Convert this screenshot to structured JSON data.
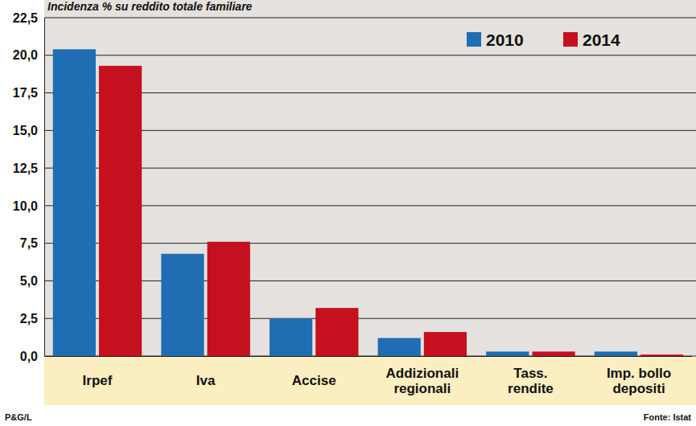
{
  "chart_data": {
    "type": "bar",
    "subtitle": "Incidenza % su reddito totale familiare",
    "categories": [
      "Irpef",
      "Iva",
      "Accise",
      "Addizionali regionali",
      "Tass. rendite",
      "Imp. bollo depositi"
    ],
    "series": [
      {
        "name": "2010",
        "color": "#1f6db3",
        "values": [
          20.4,
          6.8,
          2.5,
          1.2,
          0.3,
          0.3
        ]
      },
      {
        "name": "2014",
        "color": "#c4101f",
        "values": [
          19.3,
          7.6,
          3.2,
          1.6,
          0.3,
          0.1
        ]
      }
    ],
    "ylim": [
      0,
      22.5
    ],
    "yticks": [
      {
        "value": 0,
        "label": "0,0"
      },
      {
        "value": 2.5,
        "label": "2,5"
      },
      {
        "value": 5,
        "label": "5,0"
      },
      {
        "value": 7.5,
        "label": "7,5"
      },
      {
        "value": 10,
        "label": "10,0"
      },
      {
        "value": 12.5,
        "label": "12,5"
      },
      {
        "value": 15,
        "label": "15,0"
      },
      {
        "value": 17.5,
        "label": "17,5"
      },
      {
        "value": 20,
        "label": "20,0"
      },
      {
        "value": 22.5,
        "label": "22,5"
      }
    ],
    "grid": true,
    "legend": "top-right",
    "annotations": [
      "P&G/L",
      "Fonte: Istat"
    ]
  }
}
